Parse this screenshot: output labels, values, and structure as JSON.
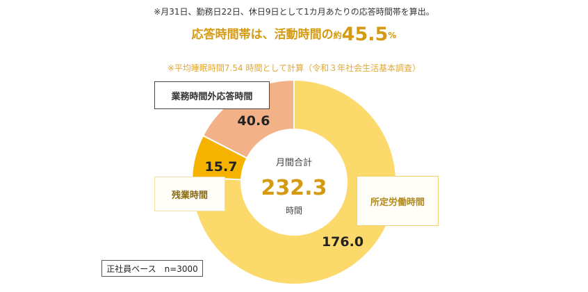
{
  "header": {
    "note_top": "※月31日、勤務日22日、休日9日として1カ月あたりの応答時間帯を算出。",
    "headline_prefix": "応答時間帯は、活動時間の",
    "headline_about": "約",
    "headline_value": "45.5",
    "headline_unit": "%",
    "note_sub": "※平均睡眠時間7.54 時間として計算（令和３年社会生活基本調査）"
  },
  "center": {
    "label": "月間合計",
    "value": "232.3",
    "unit": "時間"
  },
  "basis_label": "正社員ベース　n=3000",
  "chart_data": {
    "type": "pie",
    "donut": true,
    "total": 232.3,
    "categories": [
      "所定労働時間",
      "残業時間",
      "業務時間外応答時間"
    ],
    "values": [
      176.0,
      15.7,
      40.6
    ],
    "value_labels": [
      "176.0",
      "15.7",
      "40.6"
    ],
    "colors": [
      "#fbd96a",
      "#f5b300",
      "#f2b186"
    ],
    "start": "top",
    "direction": "clockwise"
  }
}
